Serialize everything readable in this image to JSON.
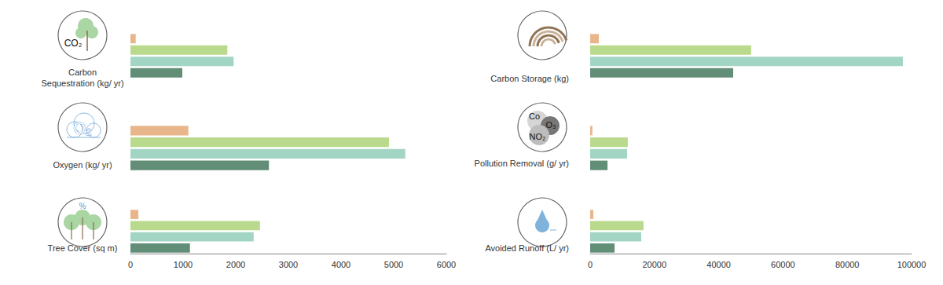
{
  "chart_data": [
    {
      "type": "bar",
      "orientation": "horizontal",
      "title": "Carbon\nSequestration (kg/ yr)",
      "annotations": [
        "CO₂"
      ],
      "categories": [
        null,
        null,
        null,
        null
      ],
      "values": [
        100,
        1840,
        1960,
        985
      ],
      "colors": [
        "#e9b68c",
        "#b9da8c",
        "#a3d5c5",
        "#628e78"
      ],
      "xlim": [
        0,
        6000
      ],
      "xticks": [
        0,
        1000,
        2000,
        3000,
        4000,
        5000,
        6000
      ],
      "tick_labels": false,
      "grid": false
    },
    {
      "type": "bar",
      "orientation": "horizontal",
      "title": "Oxygen (kg/ yr)",
      "annotations": [
        "O₂"
      ],
      "categories": [
        null,
        null,
        null,
        null
      ],
      "values": [
        1100,
        4910,
        5220,
        2630
      ],
      "colors": [
        "#e9b68c",
        "#b9da8c",
        "#a3d5c5",
        "#628e78"
      ],
      "xlim": [
        0,
        6000
      ],
      "xticks": [
        0,
        1000,
        2000,
        3000,
        4000,
        5000,
        6000
      ],
      "tick_labels": false,
      "grid": false
    },
    {
      "type": "bar",
      "orientation": "horizontal",
      "title": "Tree Cover (sq m)",
      "annotations": [
        "%"
      ],
      "categories": [
        null,
        null,
        null,
        null
      ],
      "values": [
        150,
        2460,
        2340,
        1130
      ],
      "colors": [
        "#e9b68c",
        "#b9da8c",
        "#a3d5c5",
        "#628e78"
      ],
      "xlim": [
        0,
        6000
      ],
      "xticks": [
        0,
        1000,
        2000,
        3000,
        4000,
        5000,
        6000
      ],
      "tick_labels": "x",
      "grid": false
    },
    {
      "type": "bar",
      "orientation": "horizontal",
      "title": "Carbon Storage (kg)",
      "annotations": [],
      "categories": [
        null,
        null,
        null,
        null
      ],
      "values": [
        2700,
        50100,
        97300,
        44500
      ],
      "colors": [
        "#e9b68c",
        "#b9da8c",
        "#a3d5c5",
        "#628e78"
      ],
      "xlim": [
        0,
        100000
      ],
      "xticks": [
        0,
        20000,
        40000,
        60000,
        80000,
        100000
      ],
      "tick_labels": false,
      "grid": false
    },
    {
      "type": "bar",
      "orientation": "horizontal",
      "title": "Pollution Removal (g/ yr)",
      "annotations": [
        "Co",
        "O₃",
        "NO₂"
      ],
      "categories": [
        null,
        null,
        null,
        null
      ],
      "values": [
        700,
        11700,
        11500,
        5400
      ],
      "colors": [
        "#e9b68c",
        "#b9da8c",
        "#a3d5c5",
        "#628e78"
      ],
      "xlim": [
        0,
        100000
      ],
      "xticks": [
        0,
        20000,
        40000,
        60000,
        80000,
        100000
      ],
      "tick_labels": false,
      "grid": false
    },
    {
      "type": "bar",
      "orientation": "horizontal",
      "title": "Avoided Runoff (L/ yr)",
      "annotations": [],
      "categories": [
        null,
        null,
        null,
        null
      ],
      "values": [
        1000,
        16600,
        15900,
        7600
      ],
      "colors": [
        "#e9b68c",
        "#b9da8c",
        "#a3d5c5",
        "#628e78"
      ],
      "xlim": [
        0,
        100000
      ],
      "xticks": [
        0,
        20000,
        40000,
        60000,
        80000,
        100000
      ],
      "tick_labels": "x",
      "grid": false
    }
  ]
}
